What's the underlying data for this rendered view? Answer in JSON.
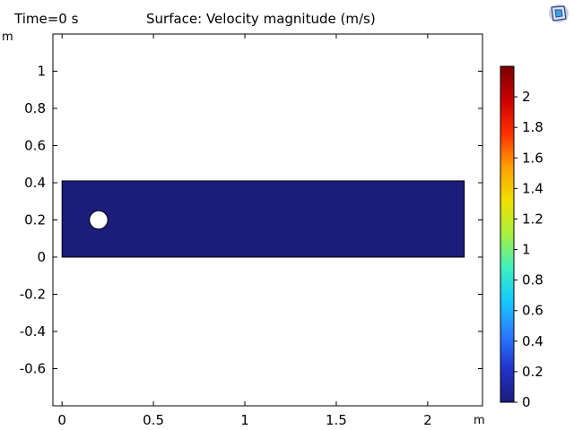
{
  "header": {
    "time_label": "Time=0 s",
    "plot_title": "Surface: Velocity magnitude (m/s)",
    "y_unit": "m",
    "x_unit": "m",
    "logo_icon": "comsol-logo-icon"
  },
  "chart_data": {
    "type": "heatmap",
    "title": "Surface: Velocity magnitude (m/s)",
    "subtitle": "Time=0 s",
    "xlabel": "m",
    "ylabel": "m",
    "xlim": [
      -0.05,
      2.3
    ],
    "ylim": [
      -0.8,
      1.2
    ],
    "x_ticks": [
      0,
      0.5,
      1,
      1.5,
      2
    ],
    "x_tick_labels": [
      "0",
      "0.5",
      "1",
      "1.5",
      "2"
    ],
    "y_ticks": [
      -0.6,
      -0.4,
      -0.2,
      0,
      0.2,
      0.4,
      0.6,
      0.8,
      1
    ],
    "y_tick_labels": [
      "-0.6",
      "-0.4",
      "-0.2",
      "0",
      "0.2",
      "0.4",
      "0.6",
      "0.8",
      "1"
    ],
    "domain": {
      "x": [
        0,
        2.2
      ],
      "y": [
        0,
        0.41
      ],
      "value": 0,
      "color": "#1c1c7a"
    },
    "obstacle": {
      "shape": "circle",
      "cx": 0.2,
      "cy": 0.2,
      "r": 0.05,
      "color": "#ffffff"
    },
    "colorbar": {
      "min": 0,
      "max": 2.2,
      "ticks": [
        0,
        0.2,
        0.4,
        0.6,
        0.8,
        1,
        1.2,
        1.4,
        1.6,
        1.8,
        2
      ],
      "tick_labels": [
        "0",
        "0.2",
        "0.4",
        "0.6",
        "0.8",
        "1",
        "1.2",
        "1.4",
        "1.6",
        "1.8",
        "2"
      ],
      "colormap": "jet",
      "colors": [
        "#1c1c7a",
        "#2233cc",
        "#2a7bff",
        "#14c8ff",
        "#3ef0c0",
        "#a8f040",
        "#f0e000",
        "#ffa000",
        "#ff3000",
        "#cc0000",
        "#7a0000"
      ]
    }
  }
}
